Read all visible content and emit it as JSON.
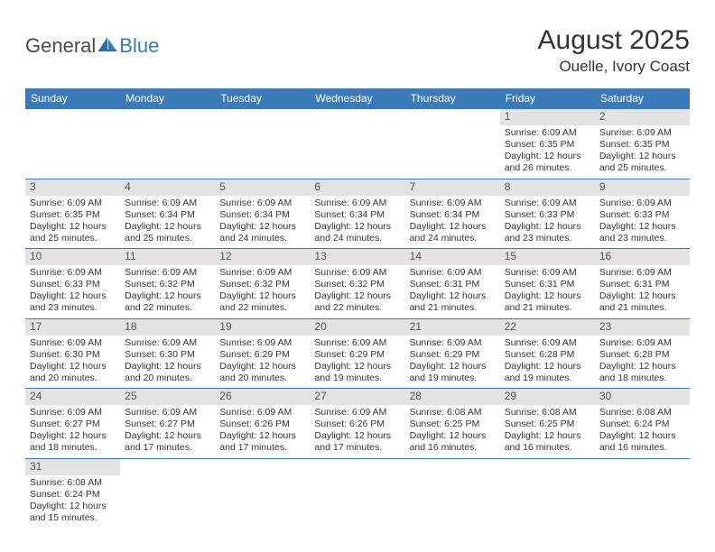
{
  "logo": {
    "part1": "General",
    "part2": "Blue"
  },
  "title": "August 2025",
  "location": "Ouelle, Ivory Coast",
  "colors": {
    "header_bg": "#3a7ab8",
    "header_text": "#ffffff",
    "daynum_bg": "#e3e3e3",
    "body_text": "#333333",
    "rule": "#3a7ab8"
  },
  "day_names": [
    "Sunday",
    "Monday",
    "Tuesday",
    "Wednesday",
    "Thursday",
    "Friday",
    "Saturday"
  ],
  "weeks": [
    [
      {
        "n": "",
        "sr": "",
        "ss": "",
        "dl": ""
      },
      {
        "n": "",
        "sr": "",
        "ss": "",
        "dl": ""
      },
      {
        "n": "",
        "sr": "",
        "ss": "",
        "dl": ""
      },
      {
        "n": "",
        "sr": "",
        "ss": "",
        "dl": ""
      },
      {
        "n": "",
        "sr": "",
        "ss": "",
        "dl": ""
      },
      {
        "n": "1",
        "sr": "Sunrise: 6:09 AM",
        "ss": "Sunset: 6:35 PM",
        "dl": "Daylight: 12 hours and 26 minutes."
      },
      {
        "n": "2",
        "sr": "Sunrise: 6:09 AM",
        "ss": "Sunset: 6:35 PM",
        "dl": "Daylight: 12 hours and 25 minutes."
      }
    ],
    [
      {
        "n": "3",
        "sr": "Sunrise: 6:09 AM",
        "ss": "Sunset: 6:35 PM",
        "dl": "Daylight: 12 hours and 25 minutes."
      },
      {
        "n": "4",
        "sr": "Sunrise: 6:09 AM",
        "ss": "Sunset: 6:34 PM",
        "dl": "Daylight: 12 hours and 25 minutes."
      },
      {
        "n": "5",
        "sr": "Sunrise: 6:09 AM",
        "ss": "Sunset: 6:34 PM",
        "dl": "Daylight: 12 hours and 24 minutes."
      },
      {
        "n": "6",
        "sr": "Sunrise: 6:09 AM",
        "ss": "Sunset: 6:34 PM",
        "dl": "Daylight: 12 hours and 24 minutes."
      },
      {
        "n": "7",
        "sr": "Sunrise: 6:09 AM",
        "ss": "Sunset: 6:34 PM",
        "dl": "Daylight: 12 hours and 24 minutes."
      },
      {
        "n": "8",
        "sr": "Sunrise: 6:09 AM",
        "ss": "Sunset: 6:33 PM",
        "dl": "Daylight: 12 hours and 23 minutes."
      },
      {
        "n": "9",
        "sr": "Sunrise: 6:09 AM",
        "ss": "Sunset: 6:33 PM",
        "dl": "Daylight: 12 hours and 23 minutes."
      }
    ],
    [
      {
        "n": "10",
        "sr": "Sunrise: 6:09 AM",
        "ss": "Sunset: 6:33 PM",
        "dl": "Daylight: 12 hours and 23 minutes."
      },
      {
        "n": "11",
        "sr": "Sunrise: 6:09 AM",
        "ss": "Sunset: 6:32 PM",
        "dl": "Daylight: 12 hours and 22 minutes."
      },
      {
        "n": "12",
        "sr": "Sunrise: 6:09 AM",
        "ss": "Sunset: 6:32 PM",
        "dl": "Daylight: 12 hours and 22 minutes."
      },
      {
        "n": "13",
        "sr": "Sunrise: 6:09 AM",
        "ss": "Sunset: 6:32 PM",
        "dl": "Daylight: 12 hours and 22 minutes."
      },
      {
        "n": "14",
        "sr": "Sunrise: 6:09 AM",
        "ss": "Sunset: 6:31 PM",
        "dl": "Daylight: 12 hours and 21 minutes."
      },
      {
        "n": "15",
        "sr": "Sunrise: 6:09 AM",
        "ss": "Sunset: 6:31 PM",
        "dl": "Daylight: 12 hours and 21 minutes."
      },
      {
        "n": "16",
        "sr": "Sunrise: 6:09 AM",
        "ss": "Sunset: 6:31 PM",
        "dl": "Daylight: 12 hours and 21 minutes."
      }
    ],
    [
      {
        "n": "17",
        "sr": "Sunrise: 6:09 AM",
        "ss": "Sunset: 6:30 PM",
        "dl": "Daylight: 12 hours and 20 minutes."
      },
      {
        "n": "18",
        "sr": "Sunrise: 6:09 AM",
        "ss": "Sunset: 6:30 PM",
        "dl": "Daylight: 12 hours and 20 minutes."
      },
      {
        "n": "19",
        "sr": "Sunrise: 6:09 AM",
        "ss": "Sunset: 6:29 PM",
        "dl": "Daylight: 12 hours and 20 minutes."
      },
      {
        "n": "20",
        "sr": "Sunrise: 6:09 AM",
        "ss": "Sunset: 6:29 PM",
        "dl": "Daylight: 12 hours and 19 minutes."
      },
      {
        "n": "21",
        "sr": "Sunrise: 6:09 AM",
        "ss": "Sunset: 6:29 PM",
        "dl": "Daylight: 12 hours and 19 minutes."
      },
      {
        "n": "22",
        "sr": "Sunrise: 6:09 AM",
        "ss": "Sunset: 6:28 PM",
        "dl": "Daylight: 12 hours and 19 minutes."
      },
      {
        "n": "23",
        "sr": "Sunrise: 6:09 AM",
        "ss": "Sunset: 6:28 PM",
        "dl": "Daylight: 12 hours and 18 minutes."
      }
    ],
    [
      {
        "n": "24",
        "sr": "Sunrise: 6:09 AM",
        "ss": "Sunset: 6:27 PM",
        "dl": "Daylight: 12 hours and 18 minutes."
      },
      {
        "n": "25",
        "sr": "Sunrise: 6:09 AM",
        "ss": "Sunset: 6:27 PM",
        "dl": "Daylight: 12 hours and 17 minutes."
      },
      {
        "n": "26",
        "sr": "Sunrise: 6:09 AM",
        "ss": "Sunset: 6:26 PM",
        "dl": "Daylight: 12 hours and 17 minutes."
      },
      {
        "n": "27",
        "sr": "Sunrise: 6:09 AM",
        "ss": "Sunset: 6:26 PM",
        "dl": "Daylight: 12 hours and 17 minutes."
      },
      {
        "n": "28",
        "sr": "Sunrise: 6:08 AM",
        "ss": "Sunset: 6:25 PM",
        "dl": "Daylight: 12 hours and 16 minutes."
      },
      {
        "n": "29",
        "sr": "Sunrise: 6:08 AM",
        "ss": "Sunset: 6:25 PM",
        "dl": "Daylight: 12 hours and 16 minutes."
      },
      {
        "n": "30",
        "sr": "Sunrise: 6:08 AM",
        "ss": "Sunset: 6:24 PM",
        "dl": "Daylight: 12 hours and 16 minutes."
      }
    ],
    [
      {
        "n": "31",
        "sr": "Sunrise: 6:08 AM",
        "ss": "Sunset: 6:24 PM",
        "dl": "Daylight: 12 hours and 15 minutes."
      },
      {
        "n": "",
        "sr": "",
        "ss": "",
        "dl": ""
      },
      {
        "n": "",
        "sr": "",
        "ss": "",
        "dl": ""
      },
      {
        "n": "",
        "sr": "",
        "ss": "",
        "dl": ""
      },
      {
        "n": "",
        "sr": "",
        "ss": "",
        "dl": ""
      },
      {
        "n": "",
        "sr": "",
        "ss": "",
        "dl": ""
      },
      {
        "n": "",
        "sr": "",
        "ss": "",
        "dl": ""
      }
    ]
  ]
}
